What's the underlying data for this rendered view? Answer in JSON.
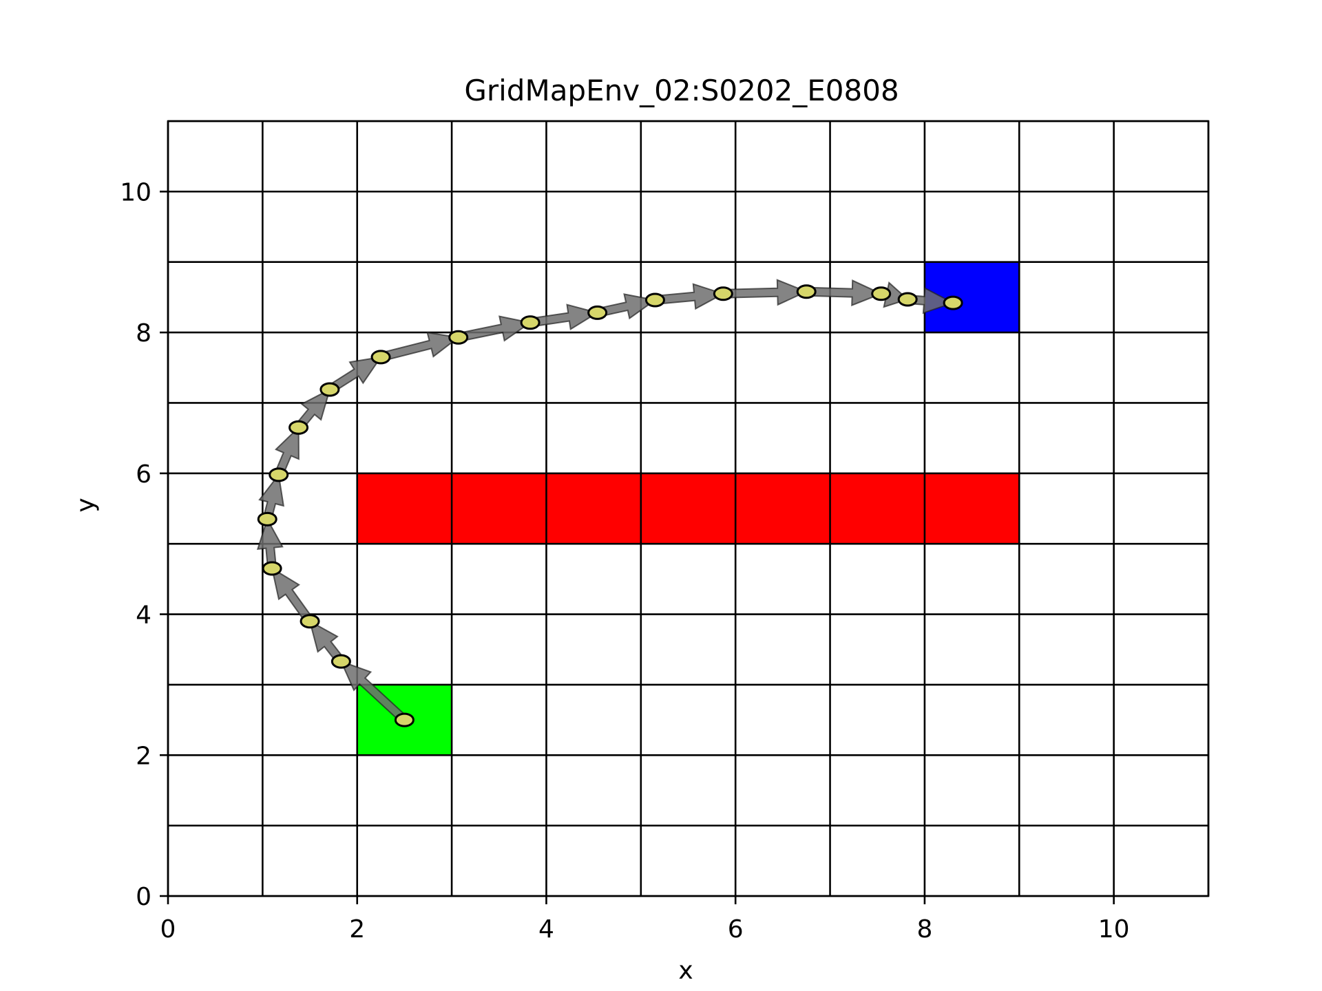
{
  "chart_data": {
    "type": "scatter",
    "title": "GridMapEnv_02:S0202_E0808",
    "xlabel": "x",
    "ylabel": "y",
    "xlim": [
      0,
      11
    ],
    "ylim": [
      0,
      11
    ],
    "xticks": [
      0,
      2,
      4,
      6,
      8,
      10
    ],
    "yticks": [
      0,
      2,
      4,
      6,
      8,
      10
    ],
    "grid": true,
    "grid_step": 1,
    "cells": [
      {
        "kind": "start",
        "x": 2,
        "y": 2,
        "color": "#00ff00"
      },
      {
        "kind": "end",
        "x": 8,
        "y": 8,
        "color": "#0000ff"
      },
      {
        "kind": "obstacle",
        "x": 2,
        "y": 5,
        "color": "#ff0000"
      },
      {
        "kind": "obstacle",
        "x": 3,
        "y": 5,
        "color": "#ff0000"
      },
      {
        "kind": "obstacle",
        "x": 4,
        "y": 5,
        "color": "#ff0000"
      },
      {
        "kind": "obstacle",
        "x": 5,
        "y": 5,
        "color": "#ff0000"
      },
      {
        "kind": "obstacle",
        "x": 6,
        "y": 5,
        "color": "#ff0000"
      },
      {
        "kind": "obstacle",
        "x": 7,
        "y": 5,
        "color": "#ff0000"
      },
      {
        "kind": "obstacle",
        "x": 8,
        "y": 5,
        "color": "#ff0000"
      }
    ],
    "trajectory": {
      "x": [
        2.5,
        1.83,
        1.5,
        1.1,
        1.05,
        1.17,
        1.38,
        1.71,
        2.25,
        3.07,
        3.83,
        4.54,
        5.15,
        5.87,
        6.75,
        7.54,
        7.82,
        8.3
      ],
      "y": [
        2.5,
        3.33,
        3.9,
        4.65,
        5.35,
        5.98,
        6.65,
        7.19,
        7.65,
        7.93,
        8.14,
        8.28,
        8.46,
        8.55,
        8.58,
        8.55,
        8.47,
        8.42
      ],
      "arrow_color": "#6f6f6f",
      "marker_color": "#d6d66a"
    }
  }
}
